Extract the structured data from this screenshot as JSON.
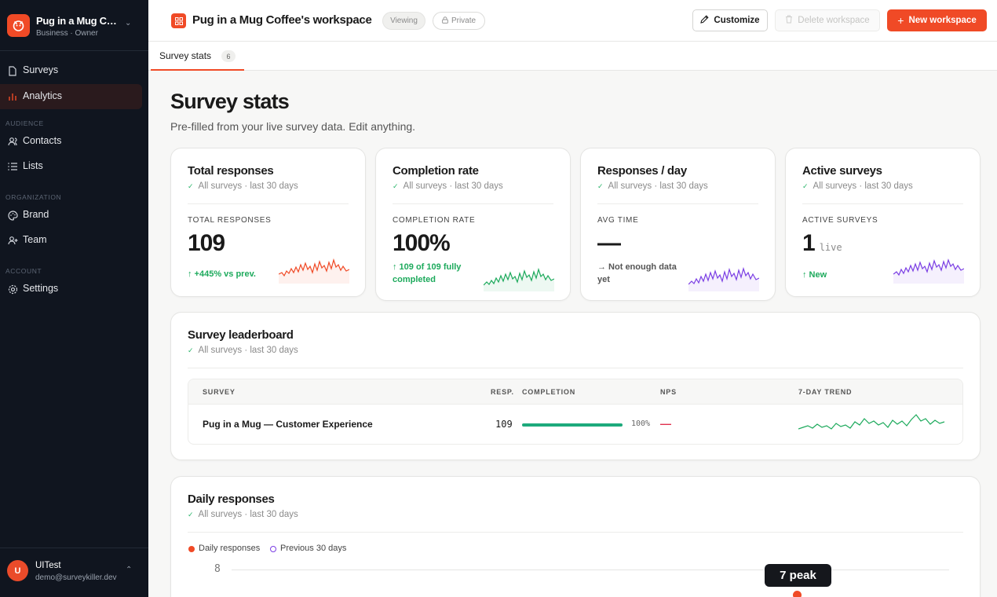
{
  "workspace": {
    "name": "Pug in a Mug Coffee's workspace",
    "short_name": "Pug in a Mug Coffee's workspace",
    "plan": "Business",
    "role": "Owner",
    "sub": "Business · Owner"
  },
  "sidebar": {
    "items": [
      {
        "label": "Surveys",
        "icon": "file-icon"
      },
      {
        "label": "Analytics",
        "icon": "bar-chart-icon",
        "active": true
      }
    ],
    "sections": [
      {
        "label": "AUDIENCE",
        "items": [
          {
            "label": "Contacts",
            "icon": "users-icon"
          },
          {
            "label": "Lists",
            "icon": "list-icon"
          }
        ]
      },
      {
        "label": "ORGANIZATION",
        "items": [
          {
            "label": "Brand",
            "icon": "palette-icon"
          },
          {
            "label": "Team",
            "icon": "user-plus-icon"
          }
        ]
      },
      {
        "label": "ACCOUNT",
        "items": [
          {
            "label": "Settings",
            "icon": "gear-icon"
          }
        ]
      }
    ]
  },
  "user": {
    "initial": "U",
    "name": "UITest",
    "email": "demo@surveykiller.dev"
  },
  "topbar": {
    "title": "Pug in a Mug Coffee's workspace",
    "viewing_label": "Viewing",
    "private_label": "Private",
    "customize_label": "Customize",
    "delete_label": "Delete workspace",
    "new_label": "New workspace"
  },
  "tabs": [
    {
      "label": "Survey stats",
      "count": "6"
    }
  ],
  "page": {
    "title": "Survey stats",
    "subtitle": "Pre-filled from your live survey data. Edit anything."
  },
  "scope": "All surveys · last 30 days",
  "cards": [
    {
      "title": "Total responses",
      "metric_label": "TOTAL RESPONSES",
      "value": "109",
      "unit": "",
      "foot": "↑ +445% vs prev.",
      "foot_style": "green",
      "spark_color": "#f04a26"
    },
    {
      "title": "Completion rate",
      "metric_label": "COMPLETION RATE",
      "value": "100%",
      "unit": "",
      "foot": "↑ 109 of 109 fully completed",
      "foot_style": "green",
      "spark_color": "#1daa5c"
    },
    {
      "title": "Responses / day",
      "metric_label": "AVG TIME",
      "value": "—",
      "unit": "",
      "foot": "→ Not enough data yet",
      "foot_style": "grey",
      "spark_color": "#7b3fe4"
    },
    {
      "title": "Active surveys",
      "metric_label": "ACTIVE SURVEYS",
      "value": "1",
      "unit": "live",
      "foot": "↑ New",
      "foot_style": "green",
      "spark_color": "#7b3fe4"
    }
  ],
  "leaderboard": {
    "title": "Survey leaderboard",
    "columns": {
      "survey": "SURVEY",
      "resp": "RESP.",
      "completion": "COMPLETION",
      "nps": "NPS",
      "trend": "7-DAY TREND"
    },
    "rows": [
      {
        "name": "Pug in a Mug — Customer Experience",
        "responses": "109",
        "completion_pct": "100%",
        "completion_fraction": 1.0,
        "nps": "—"
      }
    ]
  },
  "daily": {
    "title": "Daily responses",
    "legend": [
      {
        "label": "Daily responses",
        "color": "#f04a26"
      },
      {
        "label": "Previous 30 days",
        "color": "#7b3fe4"
      }
    ],
    "y_tick": "8",
    "peak_label": "7 peak"
  },
  "colors": {
    "accent": "#f04a26",
    "success": "#1daa5c",
    "purple": "#7b3fe4",
    "sidebar": "#10151f"
  }
}
